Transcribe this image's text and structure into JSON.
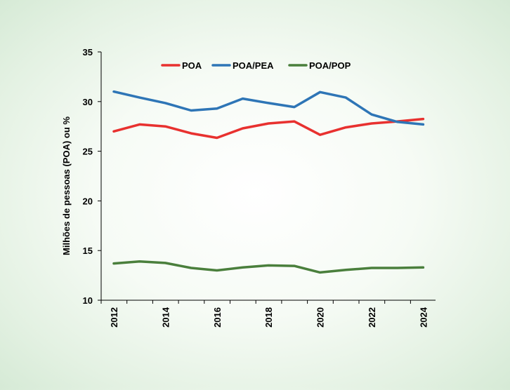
{
  "chart_data": {
    "type": "line",
    "title": "",
    "xlabel": "",
    "ylabel": "Milhões de pessoas (POA) ou %",
    "x": [
      2012,
      2013,
      2014,
      2015,
      2016,
      2017,
      2018,
      2019,
      2020,
      2021,
      2022,
      2023,
      2024
    ],
    "xticks": [
      "2012",
      "2014",
      "2016",
      "2018",
      "2020",
      "2022",
      "2024"
    ],
    "ylim": [
      10,
      35
    ],
    "yticks": [
      "10",
      "15",
      "20",
      "25",
      "30",
      "35"
    ],
    "legend_position": "top",
    "series": [
      {
        "name": "POA",
        "color": "#e8312f",
        "values": [
          27.0,
          27.7,
          27.5,
          26.8,
          26.35,
          27.3,
          27.8,
          28.0,
          26.65,
          27.4,
          27.8,
          28.0,
          28.25
        ]
      },
      {
        "name": "POA/PEA",
        "color": "#2e75b6",
        "values": [
          31.0,
          30.4,
          29.85,
          29.1,
          29.3,
          30.3,
          29.85,
          29.45,
          30.95,
          30.4,
          28.7,
          27.95,
          27.7
        ]
      },
      {
        "name": "POA/POP",
        "color": "#4a7f3c",
        "values": [
          13.7,
          13.9,
          13.75,
          13.25,
          13.0,
          13.3,
          13.5,
          13.45,
          12.8,
          13.05,
          13.25,
          13.25,
          13.3
        ]
      }
    ]
  }
}
